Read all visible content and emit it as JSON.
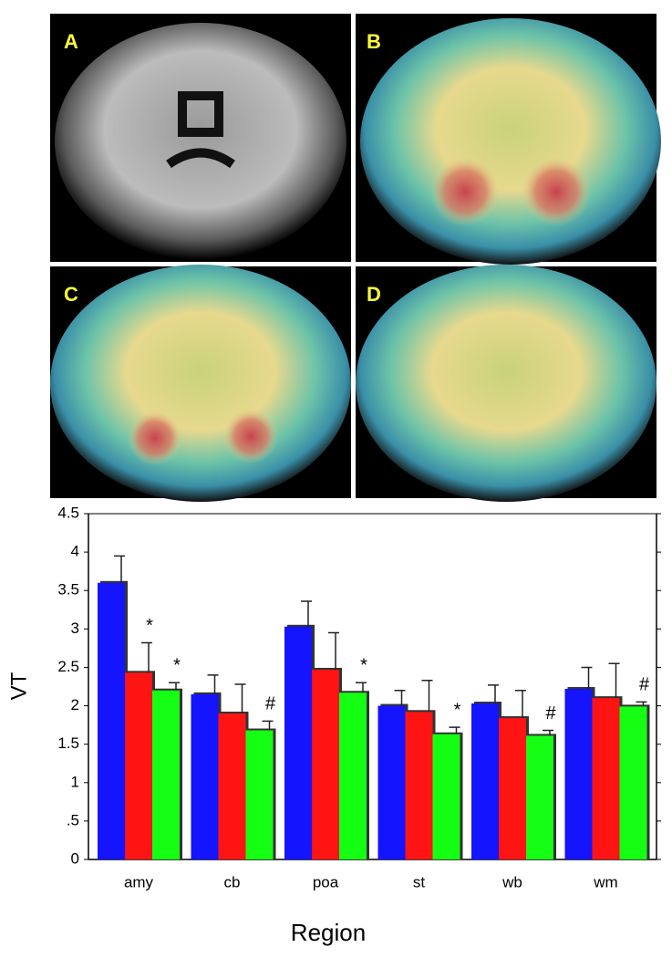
{
  "panels": [
    "A",
    "B",
    "C",
    "D"
  ],
  "chart_data": {
    "type": "bar",
    "ylabel": "VT",
    "xlabel": "Region",
    "categories": [
      "amy",
      "cb",
      "poa",
      "st",
      "wb",
      "wm"
    ],
    "series": [
      {
        "color": "#1414ff",
        "values": [
          3.6,
          2.15,
          3.03,
          2.0,
          2.03,
          2.22
        ],
        "errors": [
          0.35,
          0.25,
          0.33,
          0.2,
          0.24,
          0.28
        ],
        "markers": [
          null,
          null,
          null,
          null,
          null,
          null
        ]
      },
      {
        "color": "#ff1414",
        "values": [
          2.43,
          1.9,
          2.47,
          1.92,
          1.84,
          2.1
        ],
        "errors": [
          0.39,
          0.38,
          0.48,
          0.41,
          0.36,
          0.45
        ],
        "markers": [
          "*",
          null,
          null,
          null,
          null,
          null
        ]
      },
      {
        "color": "#14ff14",
        "values": [
          2.2,
          1.68,
          2.17,
          1.63,
          1.61,
          1.99
        ],
        "errors": [
          0.1,
          0.12,
          0.13,
          0.09,
          0.07,
          0.06
        ],
        "markers": [
          "*",
          "#",
          "*",
          "*",
          "#",
          "#"
        ]
      }
    ],
    "ylim": [
      0,
      4.5
    ],
    "yticks": [
      0,
      {
        "value": 0.5,
        "label": ".5"
      },
      1,
      1.5,
      2,
      2.5,
      3,
      3.5,
      4,
      4.5
    ]
  }
}
